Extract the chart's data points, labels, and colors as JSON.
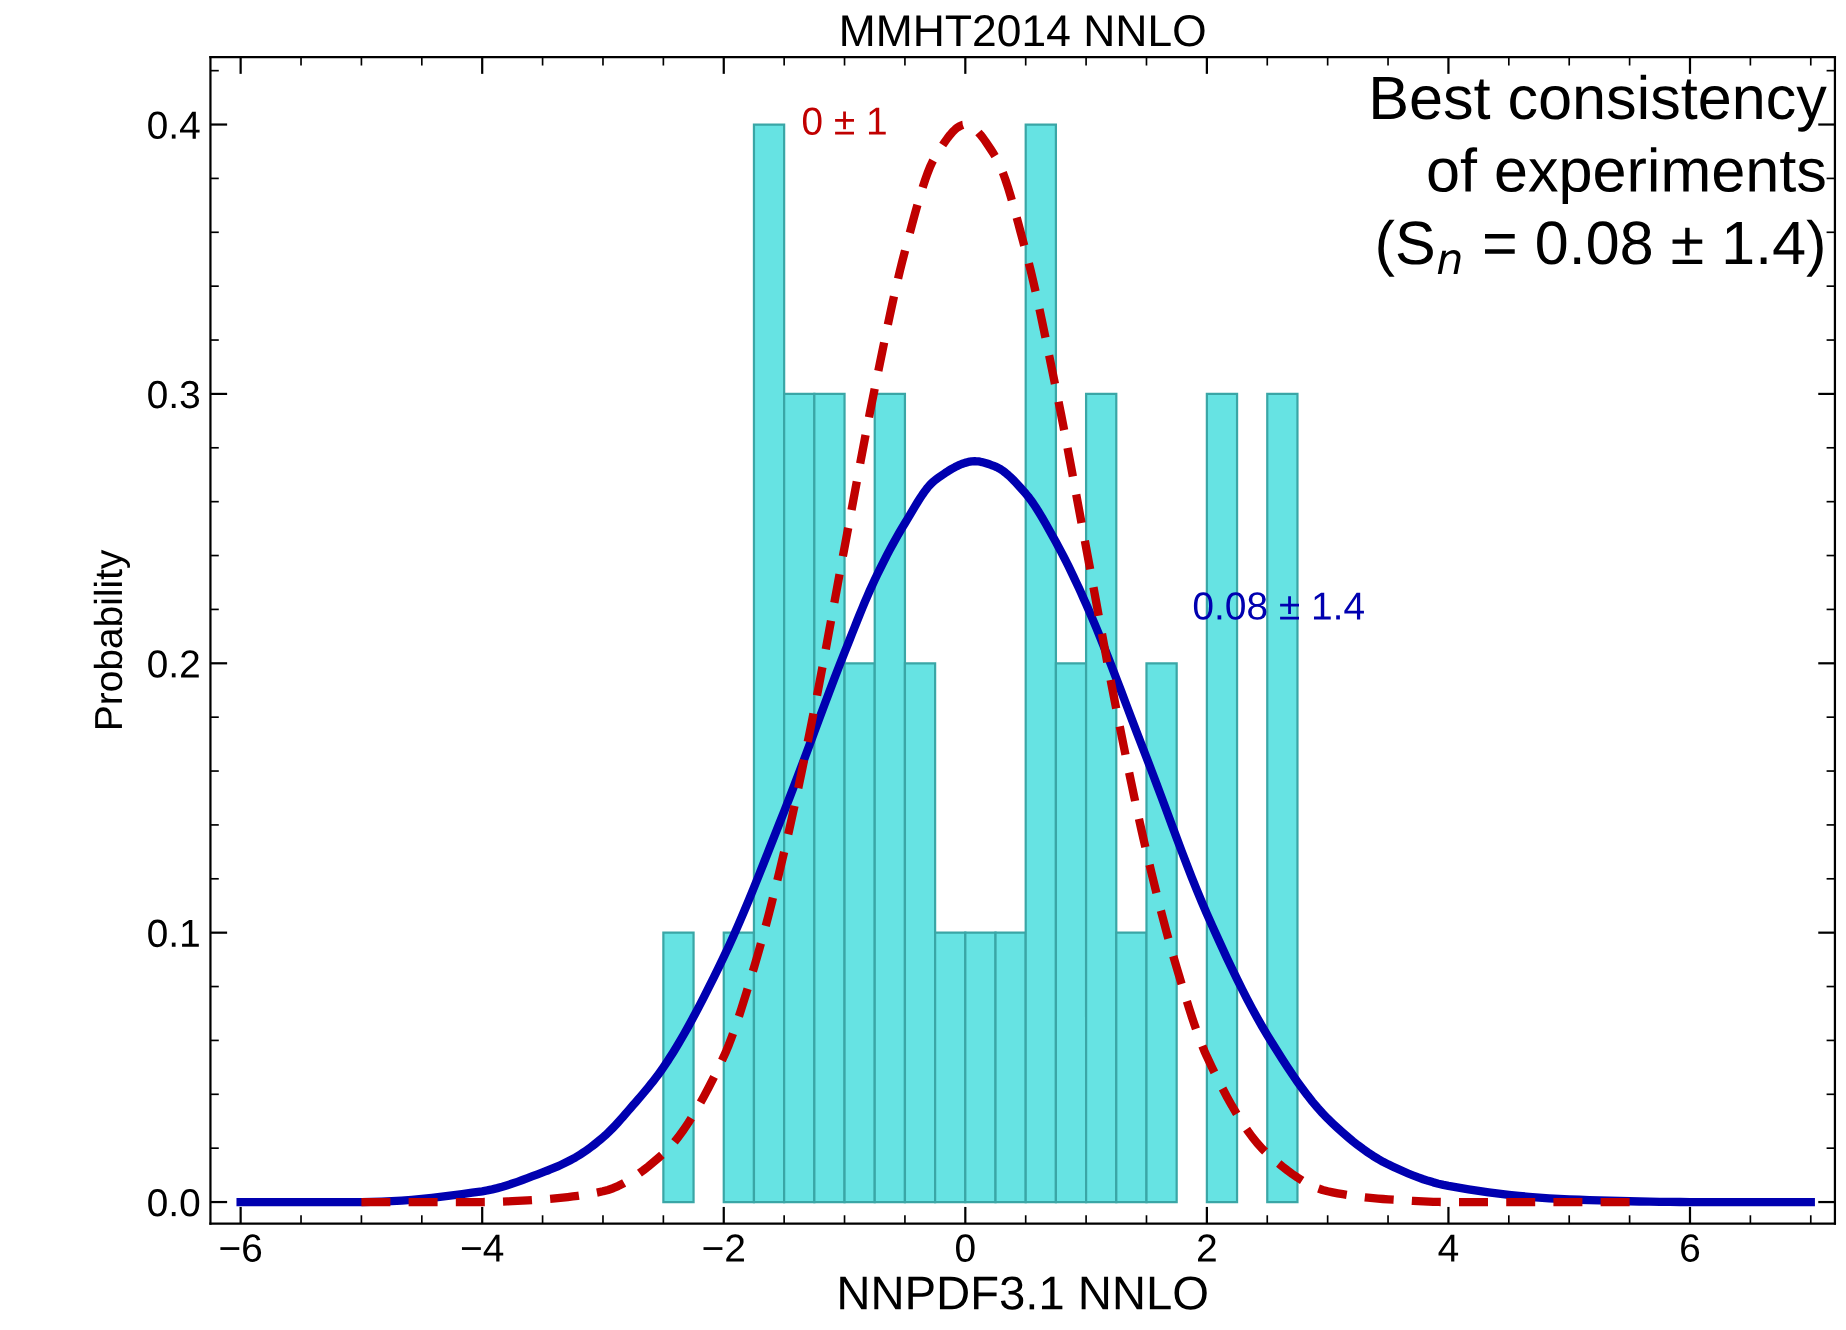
{
  "chart_data": {
    "type": "histogram",
    "title": "MMHT2014 NNLO",
    "xlabel": "NNPDF3.1 NNLO",
    "ylabel": "Probability",
    "bins": [
      -2.5,
      -2.25,
      -2.0,
      -1.75,
      -1.5,
      -1.25,
      -1.0,
      -0.75,
      -0.5,
      -0.25,
      0,
      0.25,
      0.5,
      0.75,
      1.0,
      1.25,
      1.5,
      1.75,
      2.0,
      2.25,
      2.5,
      2.75
    ],
    "values": [
      0.1,
      0,
      0.1,
      0.4,
      0.3,
      0.3,
      0.2,
      0.3,
      0.2,
      0.1,
      0.1,
      0.1,
      0.4,
      0.2,
      0.3,
      0.1,
      0.2,
      0,
      0.3,
      0,
      0.3
    ],
    "color": "#66e3e3",
    "series": [
      {
        "type": "line",
        "name": "0 ± 1",
        "color": "#c00000",
        "line_style": "dashed",
        "x": [
          -5,
          -4,
          -3.5,
          -3,
          -2.5,
          -2,
          -1.75,
          -1.5,
          -1.25,
          -1,
          -0.75,
          -0.5,
          -0.25,
          0,
          0.25,
          0.5,
          0.75,
          1,
          1.25,
          1.5,
          1.75,
          2,
          2.5,
          3,
          3.5,
          4,
          5,
          5.5
        ],
        "values": [
          0,
          0,
          0.001,
          0.004,
          0.018,
          0.054,
          0.087,
          0.13,
          0.183,
          0.243,
          0.302,
          0.353,
          0.388,
          0.4,
          0.388,
          0.353,
          0.302,
          0.243,
          0.183,
          0.13,
          0.087,
          0.054,
          0.018,
          0.004,
          0.001,
          0,
          0,
          0
        ]
      },
      {
        "type": "line",
        "name": "0.08 ± 1.4",
        "color": "#0000b0",
        "line_style": "solid",
        "x": [
          -6,
          -5,
          -4,
          -3.5,
          -3.25,
          -3,
          -2.75,
          -2.5,
          -2,
          -1.5,
          -1,
          -0.75,
          -0.5,
          -0.25,
          0.08,
          0.25,
          0.5,
          0.75,
          1,
          1.5,
          2,
          2.5,
          3,
          3.5,
          4,
          5,
          6,
          7
        ],
        "values": [
          0,
          0,
          0.004,
          0.011,
          0.016,
          0.024,
          0.036,
          0.05,
          0.091,
          0.145,
          0.204,
          0.231,
          0.252,
          0.268,
          0.275,
          0.273,
          0.263,
          0.245,
          0.222,
          0.165,
          0.107,
          0.062,
          0.031,
          0.014,
          0.006,
          0.001,
          0,
          0
        ]
      }
    ],
    "annotations": [
      "Best consistency\nof experiments\n(S$_{n}$ = 0.08 ± 1.4)"
    ],
    "xlim": [
      -6.25,
      7.2
    ],
    "ylim": [
      -0.008,
      0.425
    ],
    "xticks": [
      {
        "value": -6,
        "label": "−6"
      },
      {
        "value": -4,
        "label": "−4"
      },
      {
        "value": -2,
        "label": "−2"
      },
      0,
      2,
      4,
      6
    ],
    "yticks": [
      {
        "value": 0,
        "label": "0.0"
      },
      0.1,
      0.2,
      0.3,
      0.4
    ],
    "grid": false,
    "legend": false
  }
}
